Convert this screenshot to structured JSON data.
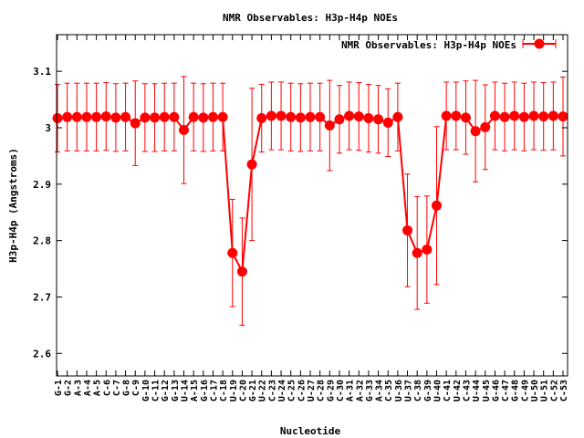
{
  "chart_data": {
    "type": "line",
    "title": "NMR Observables: H3p-H4p NOEs",
    "xlabel": "Nucleotide",
    "ylabel": "H3p-H4p (Angstroms)",
    "ylim": [
      2.56,
      3.165
    ],
    "yticks": [
      2.6,
      2.7,
      2.8,
      2.9,
      3,
      3.1
    ],
    "ytick_labels": [
      "2.6",
      "2.7",
      "2.8",
      "2.9",
      "3",
      "3.1"
    ],
    "grid": false,
    "legend_position": "top-right",
    "colors": {
      "series": "#ff0000",
      "axis": "#000000"
    },
    "categories": [
      "G-1",
      "G-2",
      "A-3",
      "A-4",
      "A-5",
      "C-6",
      "C-7",
      "G-8",
      "C-9",
      "G-10",
      "C-11",
      "G-12",
      "G-13",
      "U-14",
      "A-15",
      "G-16",
      "C-17",
      "C-18",
      "U-19",
      "C-20",
      "G-21",
      "U-22",
      "C-23",
      "U-24",
      "C-25",
      "C-26",
      "U-27",
      "C-28",
      "G-29",
      "C-30",
      "A-31",
      "A-32",
      "G-33",
      "A-34",
      "C-35",
      "U-36",
      "U-37",
      "C-38",
      "G-39",
      "U-40",
      "C-41",
      "U-42",
      "C-43",
      "U-44",
      "U-45",
      "G-46",
      "C-47",
      "G-48",
      "C-49",
      "U-50",
      "U-51",
      "C-52",
      "C-53"
    ],
    "series": [
      {
        "name": "NMR Observables: H3p-H4p NOEs",
        "values": [
          3.017,
          3.019,
          3.019,
          3.019,
          3.019,
          3.02,
          3.018,
          3.019,
          3.008,
          3.018,
          3.018,
          3.019,
          3.019,
          2.996,
          3.019,
          3.018,
          3.019,
          3.019,
          2.778,
          2.745,
          2.935,
          3.017,
          3.021,
          3.021,
          3.019,
          3.018,
          3.019,
          3.019,
          3.004,
          3.015,
          3.021,
          3.02,
          3.017,
          3.015,
          3.009,
          3.019,
          2.818,
          2.778,
          2.784,
          2.862,
          3.021,
          3.021,
          3.018,
          2.994,
          3.001,
          3.021,
          3.019,
          3.021,
          3.019,
          3.021,
          3.02,
          3.021,
          3.02
        ],
        "errors": [
          0.06,
          0.06,
          0.06,
          0.06,
          0.06,
          0.06,
          0.06,
          0.06,
          0.075,
          0.06,
          0.06,
          0.06,
          0.06,
          0.095,
          0.06,
          0.06,
          0.06,
          0.06,
          0.095,
          0.095,
          0.135,
          0.06,
          0.06,
          0.06,
          0.06,
          0.06,
          0.06,
          0.06,
          0.08,
          0.06,
          0.06,
          0.06,
          0.06,
          0.06,
          0.06,
          0.06,
          0.1,
          0.1,
          0.095,
          0.14,
          0.06,
          0.06,
          0.065,
          0.09,
          0.075,
          0.06,
          0.06,
          0.06,
          0.06,
          0.06,
          0.06,
          0.06,
          0.07
        ]
      }
    ]
  }
}
